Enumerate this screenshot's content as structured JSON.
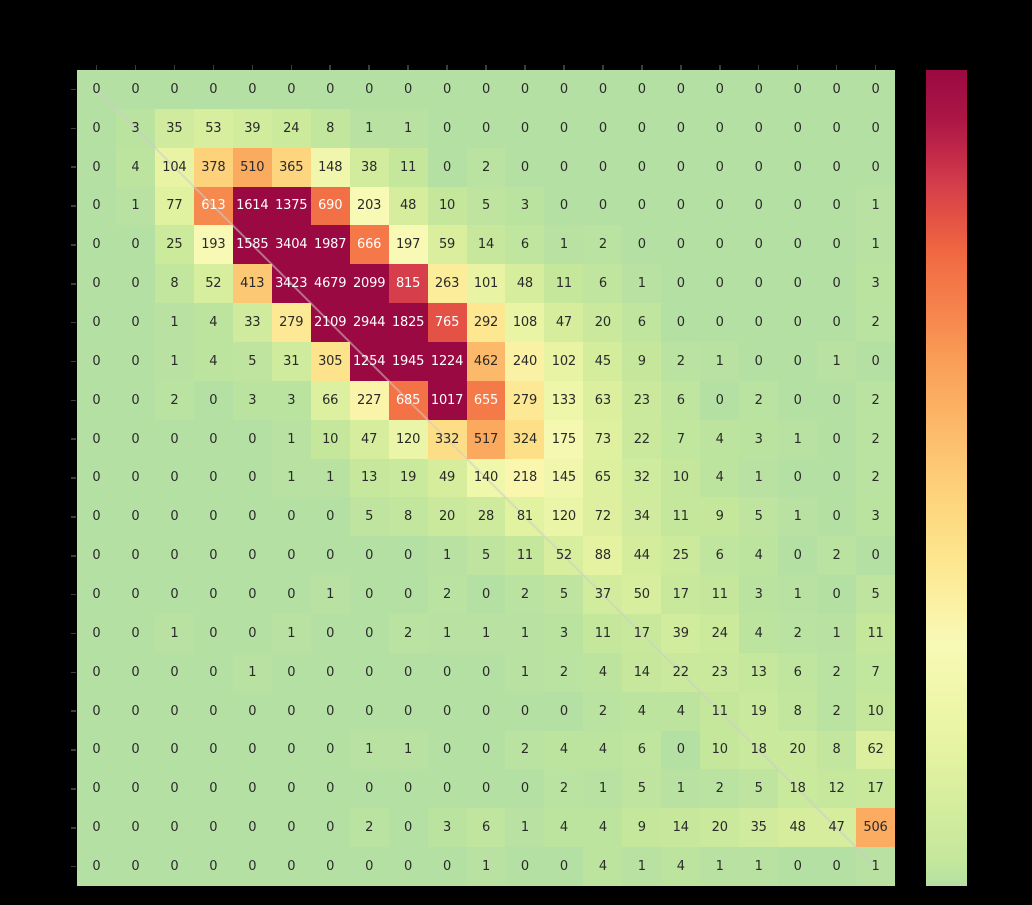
{
  "figure": {
    "background": "#000000",
    "axis_tick_color": "#3d3d3d"
  },
  "chart_data": {
    "type": "heatmap",
    "description": "21x21 annotated heatmap (confusion-matrix style) with diagonal reference line and vertical colorbar on right",
    "rows": 21,
    "cols": 21,
    "values": [
      [
        0,
        0,
        0,
        0,
        0,
        0,
        0,
        0,
        0,
        0,
        0,
        0,
        0,
        0,
        0,
        0,
        0,
        0,
        0,
        0,
        0
      ],
      [
        0,
        3,
        35,
        53,
        39,
        24,
        8,
        1,
        1,
        0,
        0,
        0,
        0,
        0,
        0,
        0,
        0,
        0,
        0,
        0,
        0
      ],
      [
        0,
        4,
        104,
        378,
        510,
        365,
        148,
        38,
        11,
        0,
        2,
        0,
        0,
        0,
        0,
        0,
        0,
        0,
        0,
        0,
        0
      ],
      [
        0,
        1,
        77,
        613,
        1614,
        1375,
        690,
        203,
        48,
        10,
        5,
        3,
        0,
        0,
        0,
        0,
        0,
        0,
        0,
        0,
        1
      ],
      [
        0,
        0,
        25,
        193,
        1585,
        3404,
        1987,
        666,
        197,
        59,
        14,
        6,
        1,
        2,
        0,
        0,
        0,
        0,
        0,
        0,
        1
      ],
      [
        0,
        0,
        8,
        52,
        413,
        3423,
        4679,
        2099,
        815,
        263,
        101,
        48,
        11,
        6,
        1,
        0,
        0,
        0,
        0,
        0,
        3
      ],
      [
        0,
        0,
        1,
        4,
        33,
        279,
        2109,
        2944,
        1825,
        765,
        292,
        108,
        47,
        20,
        6,
        0,
        0,
        0,
        0,
        0,
        2
      ],
      [
        0,
        0,
        1,
        4,
        5,
        31,
        305,
        1254,
        1945,
        1224,
        462,
        240,
        102,
        45,
        9,
        2,
        1,
        0,
        0,
        1,
        0
      ],
      [
        0,
        0,
        2,
        0,
        3,
        3,
        66,
        227,
        685,
        1017,
        655,
        279,
        133,
        63,
        23,
        6,
        0,
        2,
        0,
        0,
        2
      ],
      [
        0,
        0,
        0,
        0,
        0,
        1,
        10,
        47,
        120,
        332,
        517,
        324,
        175,
        73,
        22,
        7,
        4,
        3,
        1,
        0,
        2
      ],
      [
        0,
        0,
        0,
        0,
        0,
        1,
        1,
        13,
        19,
        49,
        140,
        218,
        145,
        65,
        32,
        10,
        4,
        1,
        0,
        0,
        2
      ],
      [
        0,
        0,
        0,
        0,
        0,
        0,
        0,
        5,
        8,
        20,
        28,
        81,
        120,
        72,
        34,
        11,
        9,
        5,
        1,
        0,
        3
      ],
      [
        0,
        0,
        0,
        0,
        0,
        0,
        0,
        0,
        0,
        1,
        5,
        11,
        52,
        88,
        44,
        25,
        6,
        4,
        0,
        2,
        0
      ],
      [
        0,
        0,
        0,
        0,
        0,
        0,
        1,
        0,
        0,
        2,
        0,
        2,
        5,
        37,
        50,
        17,
        11,
        3,
        1,
        0,
        5
      ],
      [
        0,
        0,
        1,
        0,
        0,
        1,
        0,
        0,
        2,
        1,
        1,
        1,
        3,
        11,
        17,
        39,
        24,
        4,
        2,
        1,
        11
      ],
      [
        0,
        0,
        0,
        0,
        1,
        0,
        0,
        0,
        0,
        0,
        0,
        1,
        2,
        4,
        14,
        22,
        23,
        13,
        6,
        2,
        7
      ],
      [
        0,
        0,
        0,
        0,
        0,
        0,
        0,
        0,
        0,
        0,
        0,
        0,
        0,
        2,
        4,
        4,
        11,
        19,
        8,
        2,
        10
      ],
      [
        0,
        0,
        0,
        0,
        0,
        0,
        0,
        1,
        1,
        0,
        0,
        2,
        4,
        4,
        6,
        0,
        10,
        18,
        20,
        8,
        62
      ],
      [
        0,
        0,
        0,
        0,
        0,
        0,
        0,
        0,
        0,
        0,
        0,
        0,
        2,
        1,
        5,
        1,
        2,
        5,
        18,
        12,
        17
      ],
      [
        0,
        0,
        0,
        0,
        0,
        0,
        0,
        2,
        0,
        3,
        6,
        1,
        4,
        4,
        9,
        14,
        20,
        35,
        48,
        47,
        506
      ],
      [
        0,
        0,
        0,
        0,
        0,
        0,
        0,
        0,
        0,
        0,
        1,
        0,
        0,
        4,
        1,
        4,
        1,
        1,
        0,
        0,
        1
      ]
    ],
    "colormap": {
      "vmax": 1000,
      "gamma": 0.75,
      "gradient_anchors": [
        [
          0.0,
          "#b5e0a3"
        ],
        [
          0.03,
          "#c4e79c"
        ],
        [
          0.1,
          "#d5ed9d"
        ],
        [
          0.18,
          "#e8f4a3"
        ],
        [
          0.25,
          "#f2f8ae"
        ],
        [
          0.3,
          "#f8f9b6"
        ],
        [
          0.35,
          "#fcf0a2"
        ],
        [
          0.4,
          "#fde68f"
        ],
        [
          0.45,
          "#fdda82"
        ],
        [
          0.5,
          "#fdcd77"
        ],
        [
          0.55,
          "#fcbd6c"
        ],
        [
          0.6,
          "#fbac60"
        ],
        [
          0.65,
          "#f99b56"
        ],
        [
          0.7,
          "#f6864d"
        ],
        [
          0.75,
          "#f37346"
        ],
        [
          0.78,
          "#ef6641"
        ],
        [
          0.82,
          "#e35145"
        ],
        [
          0.86,
          "#d43d4a"
        ],
        [
          0.9,
          "#c02848"
        ],
        [
          0.94,
          "#ac1645"
        ],
        [
          1.0,
          "#9a0941"
        ]
      ]
    },
    "annotation_text_dark": "#2a2a2a",
    "annotation_text_light": "#ffffff",
    "light_text_threshold": 550,
    "diagonal_line": {
      "color": "#cccccc",
      "opacity": 0.55,
      "stroke_width": 2
    },
    "colorbar": {
      "orientation": "vertical",
      "position": "right",
      "bottom_color": "#b9e2a0",
      "top_color": "#9a0941"
    },
    "grid": false,
    "legend_position": "right-colorbar"
  }
}
